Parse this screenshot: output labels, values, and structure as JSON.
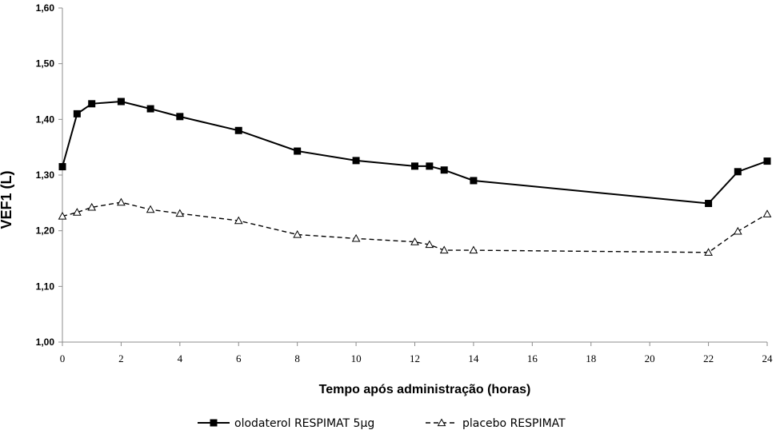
{
  "chart_data": {
    "type": "line",
    "xlabel": "Tempo após administração (horas)",
    "ylabel": "VEF1 (L)",
    "xlim": [
      0,
      24
    ],
    "ylim": [
      1.0,
      1.6
    ],
    "xticks": [
      0,
      2,
      4,
      6,
      8,
      10,
      12,
      14,
      16,
      18,
      20,
      22,
      24
    ],
    "xtick_labels": [
      "0",
      "2",
      "4",
      "6",
      "8",
      "10",
      "12",
      "14",
      "16",
      "18",
      "20",
      "22",
      "24"
    ],
    "yticks": [
      1.0,
      1.1,
      1.2,
      1.3,
      1.4,
      1.5,
      1.6
    ],
    "ytick_labels": [
      "1,00",
      "1,10",
      "1,20",
      "1,30",
      "1,40",
      "1,50",
      "1,60"
    ],
    "grid": false,
    "legend_position": "bottom",
    "series": [
      {
        "name": "olodaterol RESPIMAT 5µg",
        "marker": "square",
        "line_style": "solid",
        "color": "#000000",
        "x": [
          0,
          0.5,
          1,
          2,
          3,
          4,
          6,
          8,
          10,
          12,
          12.5,
          13,
          14,
          22,
          23,
          24
        ],
        "y": [
          1.315,
          1.41,
          1.428,
          1.432,
          1.419,
          1.405,
          1.38,
          1.343,
          1.326,
          1.316,
          1.316,
          1.309,
          1.29,
          1.249,
          1.306,
          1.325
        ]
      },
      {
        "name": "placebo RESPIMAT",
        "marker": "open-triangle",
        "line_style": "dashed",
        "color": "#000000",
        "x": [
          0,
          0.5,
          1,
          2,
          3,
          4,
          6,
          8,
          10,
          12,
          12.5,
          13,
          14,
          22,
          23,
          24
        ],
        "y": [
          1.226,
          1.233,
          1.242,
          1.251,
          1.238,
          1.231,
          1.218,
          1.193,
          1.186,
          1.18,
          1.175,
          1.165,
          1.165,
          1.161,
          1.199,
          1.23
        ]
      }
    ]
  }
}
